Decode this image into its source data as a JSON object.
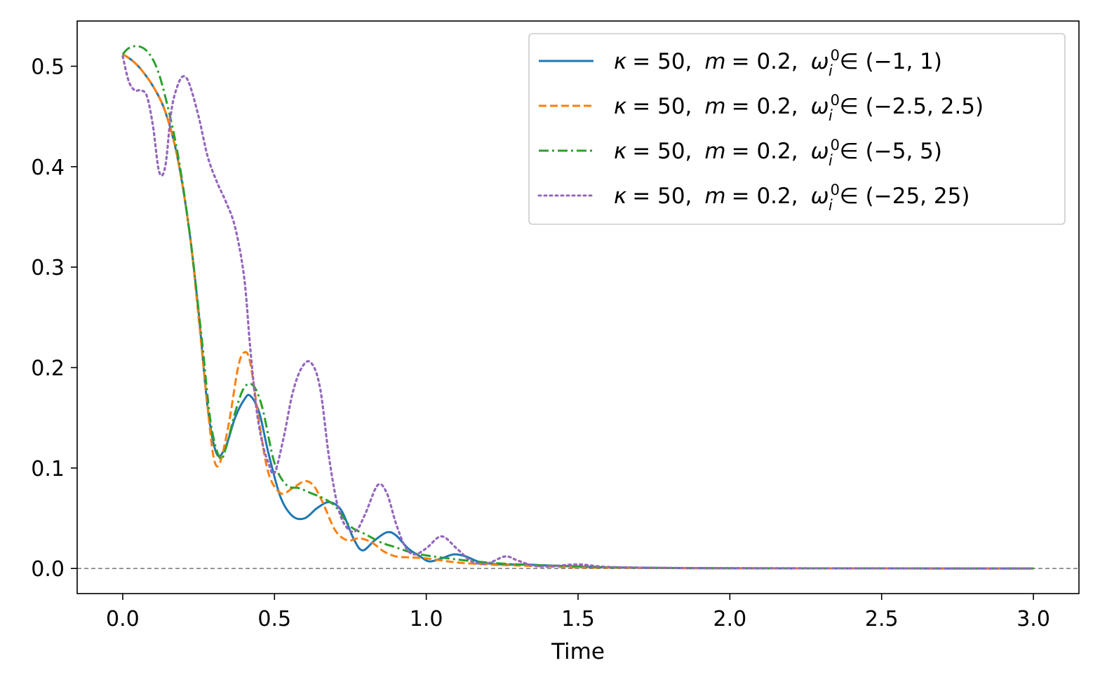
{
  "chart_data": {
    "type": "line",
    "title": "",
    "xlabel": "Time",
    "ylabel": "",
    "xlim": [
      -0.15,
      3.15
    ],
    "ylim": [
      -0.025,
      0.545
    ],
    "xticks": [
      0.0,
      0.5,
      1.0,
      1.5,
      2.0,
      2.5,
      3.0
    ],
    "xtick_labels": [
      "0.0",
      "0.5",
      "1.0",
      "1.5",
      "2.0",
      "2.5",
      "3.0"
    ],
    "yticks": [
      0.0,
      0.1,
      0.2,
      0.3,
      0.4,
      0.5
    ],
    "ytick_labels": [
      "0.0",
      "0.1",
      "0.2",
      "0.3",
      "0.4",
      "0.5"
    ],
    "grid": false,
    "legend_position": "top-right",
    "reference_line": {
      "y": 0.0,
      "style": "dashed",
      "color": "#808080"
    },
    "series": [
      {
        "name": "κ = 50, m = 0.2, ω_i^0 ∈ (−1, 1)",
        "legend": {
          "kappa": "κ",
          "kappa_val": "= 50,",
          "m": "m",
          "m_val": "= 0.2,",
          "omega": "ω",
          "sup": "0",
          "sub": "i",
          "range": "∈ (−1, 1)"
        },
        "color": "#1f77b4",
        "style": "solid",
        "x": [
          0.0,
          0.03,
          0.06,
          0.1,
          0.14,
          0.18,
          0.22,
          0.25,
          0.28,
          0.31,
          0.34,
          0.37,
          0.4,
          0.42,
          0.45,
          0.48,
          0.52,
          0.56,
          0.6,
          0.64,
          0.68,
          0.72,
          0.76,
          0.79,
          0.83,
          0.87,
          0.9,
          0.94,
          0.98,
          1.01,
          1.05,
          1.09,
          1.13,
          1.18,
          1.25,
          1.32,
          1.4,
          1.5,
          1.6,
          1.8,
          2.0,
          2.5,
          3.0
        ],
        "y": [
          0.512,
          0.506,
          0.497,
          0.48,
          0.455,
          0.41,
          0.335,
          0.255,
          0.16,
          0.114,
          0.122,
          0.15,
          0.168,
          0.172,
          0.155,
          0.115,
          0.071,
          0.052,
          0.05,
          0.06,
          0.066,
          0.058,
          0.03,
          0.018,
          0.028,
          0.036,
          0.033,
          0.02,
          0.012,
          0.007,
          0.01,
          0.014,
          0.012,
          0.006,
          0.004,
          0.004,
          0.003,
          0.002,
          0.001,
          0.0005,
          0.0002,
          0.0001,
          0.0
        ]
      },
      {
        "name": "κ = 50, m = 0.2, ω_i^0 ∈ (−2.5, 2.5)",
        "legend": {
          "kappa": "κ",
          "kappa_val": "= 50,",
          "m": "m",
          "m_val": "= 0.2,",
          "omega": "ω",
          "sup": "0",
          "sub": "i",
          "range": "∈ (−2.5, 2.5)"
        },
        "color": "#ff7f0e",
        "style": "dashed",
        "x": [
          0.0,
          0.03,
          0.06,
          0.1,
          0.14,
          0.18,
          0.22,
          0.25,
          0.28,
          0.3,
          0.32,
          0.35,
          0.38,
          0.4,
          0.42,
          0.45,
          0.48,
          0.52,
          0.56,
          0.6,
          0.63,
          0.66,
          0.7,
          0.74,
          0.78,
          0.82,
          0.86,
          0.9,
          0.95,
          1.0,
          1.05,
          1.1,
          1.2,
          1.3,
          1.4,
          1.5,
          1.6,
          1.8,
          2.0,
          2.5,
          3.0
        ],
        "y": [
          0.512,
          0.506,
          0.497,
          0.48,
          0.455,
          0.41,
          0.335,
          0.25,
          0.16,
          0.11,
          0.105,
          0.145,
          0.2,
          0.215,
          0.205,
          0.145,
          0.095,
          0.075,
          0.08,
          0.087,
          0.082,
          0.065,
          0.038,
          0.028,
          0.03,
          0.026,
          0.017,
          0.012,
          0.011,
          0.01,
          0.008,
          0.006,
          0.004,
          0.003,
          0.002,
          0.001,
          0.0008,
          0.0004,
          0.0002,
          0.0001,
          0.0
        ]
      },
      {
        "name": "κ = 50, m = 0.2, ω_i^0 ∈ (−5, 5)",
        "legend": {
          "kappa": "κ",
          "kappa_val": "= 50,",
          "m": "m",
          "m_val": "= 0.2,",
          "omega": "ω",
          "sup": "0",
          "sub": "i",
          "range": "∈ (−5, 5)"
        },
        "color": "#2ca02c",
        "style": "dashdot",
        "x": [
          0.0,
          0.02,
          0.05,
          0.08,
          0.11,
          0.14,
          0.18,
          0.22,
          0.26,
          0.29,
          0.32,
          0.34,
          0.37,
          0.4,
          0.43,
          0.46,
          0.5,
          0.54,
          0.58,
          0.62,
          0.66,
          0.7,
          0.75,
          0.8,
          0.85,
          0.9,
          0.95,
          1.0,
          1.1,
          1.2,
          1.3,
          1.4,
          1.5,
          1.6,
          1.8,
          2.0,
          2.5,
          3.0
        ],
        "y": [
          0.512,
          0.518,
          0.52,
          0.515,
          0.5,
          0.47,
          0.415,
          0.335,
          0.23,
          0.145,
          0.11,
          0.12,
          0.155,
          0.18,
          0.182,
          0.16,
          0.105,
          0.083,
          0.08,
          0.075,
          0.07,
          0.062,
          0.042,
          0.034,
          0.026,
          0.021,
          0.016,
          0.013,
          0.009,
          0.006,
          0.004,
          0.003,
          0.002,
          0.0012,
          0.0005,
          0.0002,
          0.0001,
          0.0
        ]
      },
      {
        "name": "κ = 50, m = 0.2, ω_i^0 ∈ (−25, 25)",
        "legend": {
          "kappa": "κ",
          "kappa_val": "= 50,",
          "m": "m",
          "m_val": "= 0.2,",
          "omega": "ω",
          "sup": "0",
          "sub": "i",
          "range": "∈ (−25, 25)"
        },
        "color": "#9467bd",
        "style": "dotted",
        "x": [
          0.0,
          0.02,
          0.04,
          0.06,
          0.08,
          0.1,
          0.12,
          0.14,
          0.16,
          0.18,
          0.2,
          0.22,
          0.25,
          0.28,
          0.31,
          0.34,
          0.37,
          0.4,
          0.42,
          0.44,
          0.46,
          0.48,
          0.5,
          0.53,
          0.56,
          0.59,
          0.62,
          0.65,
          0.68,
          0.71,
          0.74,
          0.77,
          0.8,
          0.84,
          0.87,
          0.9,
          0.93,
          0.96,
          1.0,
          1.05,
          1.1,
          1.15,
          1.2,
          1.26,
          1.3,
          1.35,
          1.4,
          1.5,
          1.6,
          1.8,
          2.0,
          2.5,
          3.0
        ],
        "y": [
          0.51,
          0.485,
          0.476,
          0.476,
          0.47,
          0.44,
          0.395,
          0.4,
          0.455,
          0.48,
          0.49,
          0.482,
          0.45,
          0.41,
          0.385,
          0.365,
          0.34,
          0.29,
          0.22,
          0.16,
          0.125,
          0.105,
          0.095,
          0.13,
          0.175,
          0.2,
          0.205,
          0.18,
          0.11,
          0.06,
          0.04,
          0.038,
          0.055,
          0.083,
          0.075,
          0.045,
          0.022,
          0.014,
          0.02,
          0.032,
          0.02,
          0.007,
          0.005,
          0.012,
          0.008,
          0.003,
          0.002,
          0.004,
          0.0015,
          0.0006,
          0.0003,
          0.0001,
          0.0
        ]
      }
    ]
  }
}
